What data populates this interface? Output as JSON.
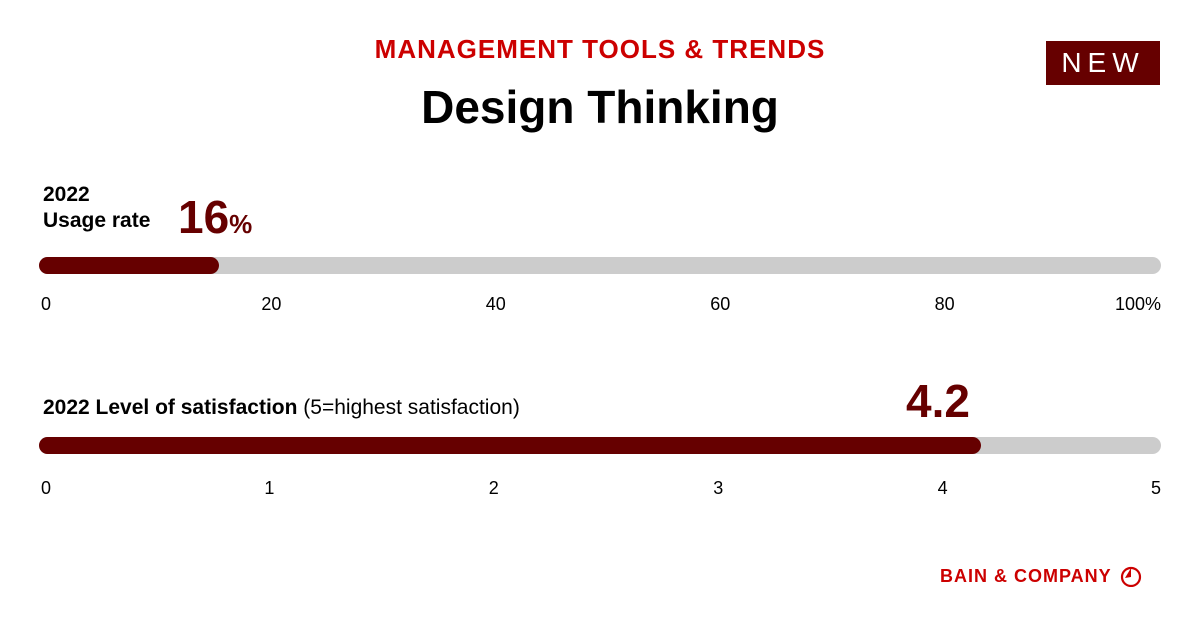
{
  "header": {
    "eyebrow": "MANAGEMENT TOOLS & TRENDS",
    "title": "Design Thinking",
    "badge": "NEW"
  },
  "usage": {
    "label_line1": "2022",
    "label_line2": "Usage rate",
    "value": "16",
    "unit": "%",
    "ticks": [
      "0",
      "20",
      "40",
      "60",
      "80",
      "100%"
    ]
  },
  "satisfaction": {
    "label_bold": "2022 Level of satisfaction",
    "label_note": "(5=highest satisfaction)",
    "value": "4.2",
    "ticks": [
      "0",
      "1",
      "2",
      "3",
      "4",
      "5"
    ]
  },
  "footer": {
    "logo_text": "BAIN & COMPANY",
    "logo_icon": "bain-compass-icon"
  },
  "colors": {
    "accent_red": "#cc0000",
    "bar_fill": "#660000",
    "bar_track": "#cccccc"
  },
  "chart_data": [
    {
      "type": "bar",
      "orientation": "horizontal",
      "title": "2022 Usage rate",
      "categories": [
        "Design Thinking"
      ],
      "values": [
        16
      ],
      "unit": "%",
      "xlim": [
        0,
        100
      ],
      "tick_labels": [
        "0",
        "20",
        "40",
        "60",
        "80",
        "100%"
      ],
      "grid": false
    },
    {
      "type": "bar",
      "orientation": "horizontal",
      "title": "2022 Level of satisfaction (5=highest satisfaction)",
      "categories": [
        "Design Thinking"
      ],
      "values": [
        4.2
      ],
      "xlim": [
        0,
        5
      ],
      "tick_labels": [
        "0",
        "1",
        "2",
        "3",
        "4",
        "5"
      ],
      "grid": false
    }
  ]
}
